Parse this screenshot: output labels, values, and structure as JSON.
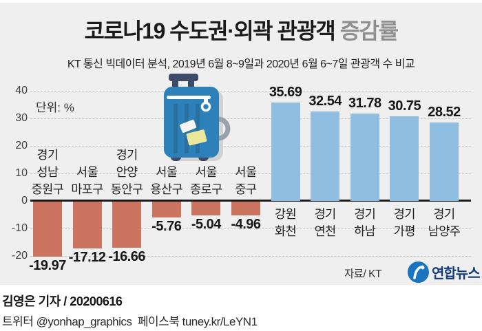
{
  "header": {
    "title_main": "코로나19 수도권·외곽 관광객 ",
    "title_accent": "증감률",
    "subtitle": "KT 통신 빅데이터 분석, 2019년 6월 8~9일과 2020년 6월 6~7일 관광객 수 비교"
  },
  "chart_data": {
    "type": "bar",
    "title": "코로나19 수도권·외곽 관광객 증감률",
    "unit_label": "단위: %",
    "categories": [
      [
        "경기",
        "성남",
        "중원구"
      ],
      [
        "서울",
        "마포구"
      ],
      [
        "경기",
        "안양",
        "동안구"
      ],
      [
        "서울",
        "용산구"
      ],
      [
        "서울",
        "종로구"
      ],
      [
        "서울",
        "중구"
      ],
      [
        "강원",
        "화천"
      ],
      [
        "경기",
        "연천"
      ],
      [
        "경기",
        "하남"
      ],
      [
        "경기",
        "가평"
      ],
      [
        "경기",
        "남양주"
      ]
    ],
    "values": [
      -19.97,
      -17.12,
      -16.66,
      -5.76,
      -5.04,
      -4.96,
      35.69,
      32.54,
      31.78,
      30.75,
      28.52
    ],
    "y_ticks": [
      40,
      30,
      20,
      10,
      0,
      -10,
      -20
    ],
    "ylim": [
      -20,
      40
    ],
    "grid": "horizontal dashed",
    "legend": "none",
    "colors": {
      "positive": "#90bee1",
      "negative": "#cb7460",
      "background": "#efefef"
    }
  },
  "source": {
    "label": "자료/ KT"
  },
  "logo": {
    "text": "연합뉴스",
    "circle_color": "#1875be",
    "text_color": "#123a7d"
  },
  "footer": {
    "byline": "김영은 기자 / 20200616",
    "social": "트위터 @yonhap_graphics  페이스북 tuney.kr/LeYN1"
  }
}
